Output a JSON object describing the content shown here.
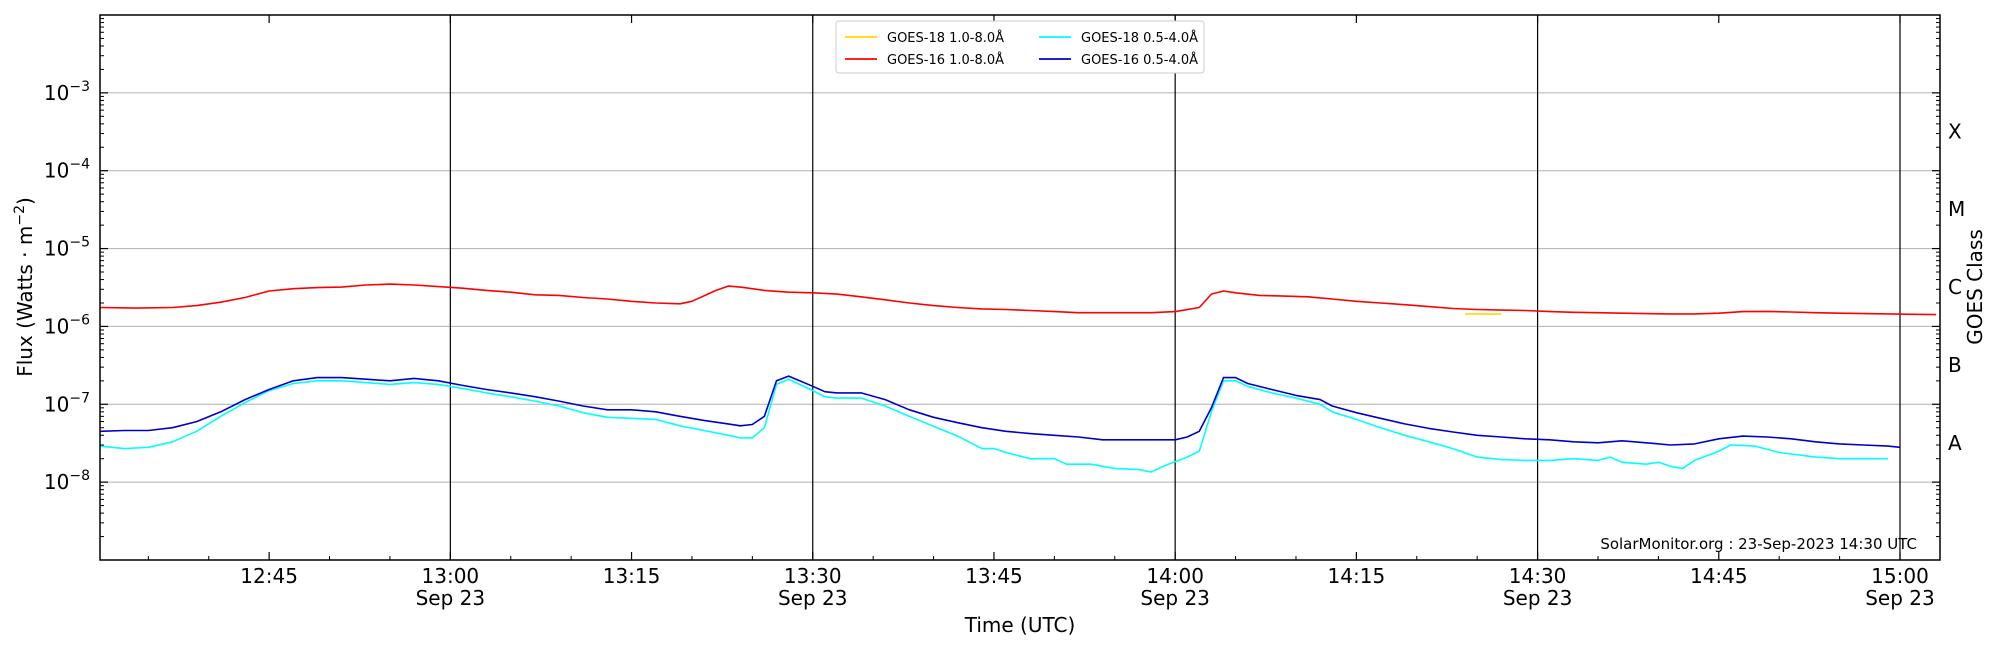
{
  "chart_data": {
    "type": "line",
    "xlabel": "Time (UTC)",
    "ylabel_parts": [
      "Flux (Watts · m",
      "−2",
      ")"
    ],
    "right_label": "GOES Class",
    "credit": "SolarMonitor.org : 23-Sep-2023 14:30 UTC",
    "yscale": "log",
    "ylim": [
      1e-09,
      0.01
    ],
    "y_ticks": [
      {
        "value": 0.001,
        "base": "10",
        "exp": "−3"
      },
      {
        "value": 0.0001,
        "base": "10",
        "exp": "−4"
      },
      {
        "value": 1e-05,
        "base": "10",
        "exp": "−5"
      },
      {
        "value": 1e-06,
        "base": "10",
        "exp": "−6"
      },
      {
        "value": 1e-07,
        "base": "10",
        "exp": "−7"
      },
      {
        "value": 1e-08,
        "base": "10",
        "exp": "−8"
      }
    ],
    "xlim": [
      "12:31",
      "15:00"
    ],
    "x_ticks": [
      {
        "time": "12:45",
        "label": "12:45",
        "date": ""
      },
      {
        "time": "13:00",
        "label": "13:00",
        "date": "Sep 23"
      },
      {
        "time": "13:15",
        "label": "13:15",
        "date": ""
      },
      {
        "time": "13:30",
        "label": "13:30",
        "date": "Sep 23"
      },
      {
        "time": "13:45",
        "label": "13:45",
        "date": ""
      },
      {
        "time": "14:00",
        "label": "14:00",
        "date": "Sep 23"
      },
      {
        "time": "14:15",
        "label": "14:15",
        "date": ""
      },
      {
        "time": "14:30",
        "label": "14:30",
        "date": "Sep 23"
      },
      {
        "time": "14:45",
        "label": "14:45",
        "date": ""
      },
      {
        "time": "15:00",
        "label": "15:00",
        "date": "Sep 23"
      }
    ],
    "vertical_lines": [
      "13:00",
      "13:30",
      "14:00",
      "14:30",
      "15:00"
    ],
    "goes_classes": [
      {
        "label": "A",
        "value": 3.2e-08
      },
      {
        "label": "B",
        "value": 3.2e-07
      },
      {
        "label": "C",
        "value": 3.2e-06
      },
      {
        "label": "M",
        "value": 3.2e-05
      },
      {
        "label": "X",
        "value": 0.00032
      }
    ],
    "grid": "horizontal",
    "legend_position": "top-center",
    "series": [
      {
        "name": "GOES-18 1.0-8.0Å",
        "color": "#ffd700",
        "points": [
          [
            "14:24",
            1.45e-06
          ],
          [
            "14:25",
            1.45e-06
          ],
          [
            "14:26",
            1.44e-06
          ],
          [
            "14:27",
            1.44e-06
          ]
        ]
      },
      {
        "name": "GOES-18 0.5-4.0Å",
        "color": "#00ffff",
        "points": [
          [
            "12:31",
            2.9e-08
          ],
          [
            "12:33",
            2.7e-08
          ],
          [
            "12:35",
            2.8e-08
          ],
          [
            "12:37",
            3.3e-08
          ],
          [
            "12:39",
            4.5e-08
          ],
          [
            "12:41",
            7e-08
          ],
          [
            "12:43",
            1.05e-07
          ],
          [
            "12:45",
            1.5e-07
          ],
          [
            "12:47",
            1.85e-07
          ],
          [
            "12:49",
            2e-07
          ],
          [
            "12:51",
            2e-07
          ],
          [
            "12:53",
            1.9e-07
          ],
          [
            "12:55",
            1.8e-07
          ],
          [
            "12:57",
            1.9e-07
          ],
          [
            "12:59",
            1.8e-07
          ],
          [
            "13:01",
            1.6e-07
          ],
          [
            "13:03",
            1.4e-07
          ],
          [
            "13:05",
            1.25e-07
          ],
          [
            "13:07",
            1.1e-07
          ],
          [
            "13:09",
            9.5e-08
          ],
          [
            "13:11",
            7.8e-08
          ],
          [
            "13:13",
            6.8e-08
          ],
          [
            "13:15",
            6.6e-08
          ],
          [
            "13:17",
            6.4e-08
          ],
          [
            "13:19",
            5.3e-08
          ],
          [
            "13:21",
            4.6e-08
          ],
          [
            "13:23",
            4e-08
          ],
          [
            "13:24",
            3.7e-08
          ],
          [
            "13:25",
            3.7e-08
          ],
          [
            "13:26",
            5e-08
          ],
          [
            "13:27",
            1.8e-07
          ],
          [
            "13:28",
            2.1e-07
          ],
          [
            "13:30",
            1.5e-07
          ],
          [
            "13:31",
            1.25e-07
          ],
          [
            "13:32",
            1.2e-07
          ],
          [
            "13:34",
            1.2e-07
          ],
          [
            "13:36",
            9.5e-08
          ],
          [
            "13:38",
            7e-08
          ],
          [
            "13:40",
            5.2e-08
          ],
          [
            "13:42",
            3.9e-08
          ],
          [
            "13:44",
            2.7e-08
          ],
          [
            "13:45",
            2.7e-08
          ],
          [
            "13:46",
            2.4e-08
          ],
          [
            "13:48",
            2e-08
          ],
          [
            "13:50",
            2e-08
          ],
          [
            "13:51",
            1.7e-08
          ],
          [
            "13:53",
            1.7e-08
          ],
          [
            "13:55",
            1.5e-08
          ],
          [
            "13:57",
            1.45e-08
          ],
          [
            "13:58",
            1.35e-08
          ],
          [
            "13:59",
            1.6e-08
          ],
          [
            "14:01",
            2.1e-08
          ],
          [
            "14:02",
            2.5e-08
          ],
          [
            "14:03",
            8e-08
          ],
          [
            "14:04",
            2e-07
          ],
          [
            "14:05",
            2e-07
          ],
          [
            "14:06",
            1.7e-07
          ],
          [
            "14:08",
            1.4e-07
          ],
          [
            "14:10",
            1.2e-07
          ],
          [
            "14:12",
            1e-07
          ],
          [
            "14:13",
            8e-08
          ],
          [
            "14:15",
            6.4e-08
          ],
          [
            "14:17",
            5e-08
          ],
          [
            "14:19",
            4e-08
          ],
          [
            "14:21",
            3.3e-08
          ],
          [
            "14:23",
            2.7e-08
          ],
          [
            "14:25",
            2.1e-08
          ],
          [
            "14:27",
            1.95e-08
          ],
          [
            "14:29",
            1.9e-08
          ],
          [
            "14:31",
            1.9e-08
          ],
          [
            "14:33",
            2e-08
          ],
          [
            "14:35",
            1.9e-08
          ],
          [
            "14:36",
            2.1e-08
          ],
          [
            "14:37",
            1.8e-08
          ],
          [
            "14:39",
            1.7e-08
          ],
          [
            "14:40",
            1.8e-08
          ],
          [
            "14:41",
            1.6e-08
          ],
          [
            "14:42",
            1.5e-08
          ],
          [
            "14:43",
            1.9e-08
          ],
          [
            "14:45",
            2.5e-08
          ],
          [
            "14:46",
            3e-08
          ],
          [
            "14:48",
            2.9e-08
          ],
          [
            "14:50",
            2.4e-08
          ],
          [
            "14:51",
            2.3e-08
          ],
          [
            "14:53",
            2.1e-08
          ],
          [
            "14:55",
            2e-08
          ],
          [
            "14:57",
            2e-08
          ],
          [
            "14:59",
            2e-08
          ]
        ]
      },
      {
        "name": "GOES-16 1.0-8.0Å",
        "color": "#ff0000",
        "points": [
          [
            "12:31",
            1.75e-06
          ],
          [
            "12:34",
            1.72e-06
          ],
          [
            "12:37",
            1.75e-06
          ],
          [
            "12:39",
            1.85e-06
          ],
          [
            "12:41",
            2.05e-06
          ],
          [
            "12:43",
            2.35e-06
          ],
          [
            "12:45",
            2.85e-06
          ],
          [
            "12:47",
            3.05e-06
          ],
          [
            "12:49",
            3.15e-06
          ],
          [
            "12:51",
            3.2e-06
          ],
          [
            "12:53",
            3.4e-06
          ],
          [
            "12:55",
            3.5e-06
          ],
          [
            "12:57",
            3.4e-06
          ],
          [
            "12:59",
            3.25e-06
          ],
          [
            "13:01",
            3.1e-06
          ],
          [
            "13:03",
            2.9e-06
          ],
          [
            "13:05",
            2.75e-06
          ],
          [
            "13:07",
            2.55e-06
          ],
          [
            "13:09",
            2.5e-06
          ],
          [
            "13:11",
            2.35e-06
          ],
          [
            "13:13",
            2.25e-06
          ],
          [
            "13:15",
            2.1e-06
          ],
          [
            "13:17",
            2e-06
          ],
          [
            "13:19",
            1.95e-06
          ],
          [
            "13:20",
            2.1e-06
          ],
          [
            "13:22",
            2.9e-06
          ],
          [
            "13:23",
            3.3e-06
          ],
          [
            "13:24",
            3.2e-06
          ],
          [
            "13:26",
            2.9e-06
          ],
          [
            "13:28",
            2.75e-06
          ],
          [
            "13:30",
            2.7e-06
          ],
          [
            "13:32",
            2.6e-06
          ],
          [
            "13:34",
            2.4e-06
          ],
          [
            "13:36",
            2.2e-06
          ],
          [
            "13:38",
            2e-06
          ],
          [
            "13:40",
            1.85e-06
          ],
          [
            "13:42",
            1.75e-06
          ],
          [
            "13:44",
            1.68e-06
          ],
          [
            "13:46",
            1.65e-06
          ],
          [
            "13:48",
            1.6e-06
          ],
          [
            "13:50",
            1.55e-06
          ],
          [
            "13:52",
            1.5e-06
          ],
          [
            "13:54",
            1.5e-06
          ],
          [
            "13:56",
            1.5e-06
          ],
          [
            "13:58",
            1.5e-06
          ],
          [
            "14:00",
            1.55e-06
          ],
          [
            "14:02",
            1.75e-06
          ],
          [
            "14:03",
            2.6e-06
          ],
          [
            "14:04",
            2.85e-06
          ],
          [
            "14:05",
            2.7e-06
          ],
          [
            "14:07",
            2.5e-06
          ],
          [
            "14:09",
            2.45e-06
          ],
          [
            "14:11",
            2.4e-06
          ],
          [
            "14:13",
            2.25e-06
          ],
          [
            "14:15",
            2.1e-06
          ],
          [
            "14:17",
            2e-06
          ],
          [
            "14:19",
            1.9e-06
          ],
          [
            "14:21",
            1.8e-06
          ],
          [
            "14:23",
            1.7e-06
          ],
          [
            "14:25",
            1.65e-06
          ],
          [
            "14:27",
            1.62e-06
          ],
          [
            "14:29",
            1.6e-06
          ],
          [
            "14:31",
            1.55e-06
          ],
          [
            "14:33",
            1.52e-06
          ],
          [
            "14:35",
            1.5e-06
          ],
          [
            "14:37",
            1.48e-06
          ],
          [
            "14:39",
            1.46e-06
          ],
          [
            "14:41",
            1.45e-06
          ],
          [
            "14:43",
            1.45e-06
          ],
          [
            "14:45",
            1.48e-06
          ],
          [
            "14:47",
            1.55e-06
          ],
          [
            "14:49",
            1.56e-06
          ],
          [
            "14:51",
            1.53e-06
          ],
          [
            "14:53",
            1.5e-06
          ],
          [
            "14:55",
            1.48e-06
          ],
          [
            "14:57",
            1.46e-06
          ],
          [
            "14:59",
            1.45e-06
          ],
          [
            "15:01",
            1.43e-06
          ],
          [
            "15:03",
            1.42e-06
          ]
        ]
      },
      {
        "name": "GOES-16 0.5-4.0Å",
        "color": "#0000cc",
        "points": [
          [
            "12:31",
            4.5e-08
          ],
          [
            "12:33",
            4.6e-08
          ],
          [
            "12:35",
            4.6e-08
          ],
          [
            "12:37",
            5e-08
          ],
          [
            "12:39",
            6e-08
          ],
          [
            "12:41",
            8e-08
          ],
          [
            "12:43",
            1.15e-07
          ],
          [
            "12:45",
            1.55e-07
          ],
          [
            "12:47",
            2e-07
          ],
          [
            "12:49",
            2.2e-07
          ],
          [
            "12:51",
            2.2e-07
          ],
          [
            "12:53",
            2.1e-07
          ],
          [
            "12:55",
            2e-07
          ],
          [
            "12:57",
            2.15e-07
          ],
          [
            "12:59",
            2e-07
          ],
          [
            "13:01",
            1.75e-07
          ],
          [
            "13:03",
            1.55e-07
          ],
          [
            "13:05",
            1.4e-07
          ],
          [
            "13:07",
            1.25e-07
          ],
          [
            "13:09",
            1.1e-07
          ],
          [
            "13:11",
            9.5e-08
          ],
          [
            "13:13",
            8.5e-08
          ],
          [
            "13:15",
            8.5e-08
          ],
          [
            "13:17",
            8e-08
          ],
          [
            "13:19",
            7e-08
          ],
          [
            "13:21",
            6.2e-08
          ],
          [
            "13:23",
            5.6e-08
          ],
          [
            "13:24",
            5.3e-08
          ],
          [
            "13:25",
            5.5e-08
          ],
          [
            "13:26",
            7e-08
          ],
          [
            "13:27",
            2e-07
          ],
          [
            "13:28",
            2.3e-07
          ],
          [
            "13:30",
            1.7e-07
          ],
          [
            "13:31",
            1.45e-07
          ],
          [
            "13:32",
            1.4e-07
          ],
          [
            "13:34",
            1.4e-07
          ],
          [
            "13:36",
            1.15e-07
          ],
          [
            "13:38",
            8.5e-08
          ],
          [
            "13:40",
            6.8e-08
          ],
          [
            "13:42",
            5.8e-08
          ],
          [
            "13:44",
            5e-08
          ],
          [
            "13:46",
            4.5e-08
          ],
          [
            "13:48",
            4.2e-08
          ],
          [
            "13:50",
            4e-08
          ],
          [
            "13:52",
            3.8e-08
          ],
          [
            "13:54",
            3.5e-08
          ],
          [
            "13:56",
            3.5e-08
          ],
          [
            "13:58",
            3.5e-08
          ],
          [
            "14:00",
            3.5e-08
          ],
          [
            "14:01",
            3.8e-08
          ],
          [
            "14:02",
            4.5e-08
          ],
          [
            "14:03",
            9e-08
          ],
          [
            "14:04",
            2.2e-07
          ],
          [
            "14:05",
            2.2e-07
          ],
          [
            "14:06",
            1.85e-07
          ],
          [
            "14:08",
            1.55e-07
          ],
          [
            "14:10",
            1.3e-07
          ],
          [
            "14:12",
            1.15e-07
          ],
          [
            "14:13",
            9.5e-08
          ],
          [
            "14:15",
            7.8e-08
          ],
          [
            "14:17",
            6.6e-08
          ],
          [
            "14:19",
            5.6e-08
          ],
          [
            "14:21",
            4.9e-08
          ],
          [
            "14:23",
            4.4e-08
          ],
          [
            "14:25",
            4e-08
          ],
          [
            "14:27",
            3.8e-08
          ],
          [
            "14:29",
            3.6e-08
          ],
          [
            "14:31",
            3.5e-08
          ],
          [
            "14:33",
            3.3e-08
          ],
          [
            "14:35",
            3.2e-08
          ],
          [
            "14:37",
            3.4e-08
          ],
          [
            "14:39",
            3.2e-08
          ],
          [
            "14:41",
            3e-08
          ],
          [
            "14:43",
            3.1e-08
          ],
          [
            "14:45",
            3.6e-08
          ],
          [
            "14:47",
            3.9e-08
          ],
          [
            "14:49",
            3.8e-08
          ],
          [
            "14:51",
            3.6e-08
          ],
          [
            "14:53",
            3.3e-08
          ],
          [
            "14:55",
            3.1e-08
          ],
          [
            "14:57",
            3e-08
          ],
          [
            "14:59",
            2.9e-08
          ],
          [
            "15:00",
            2.8e-08
          ]
        ]
      }
    ],
    "legend_order": [
      0,
      1,
      2,
      3
    ]
  }
}
